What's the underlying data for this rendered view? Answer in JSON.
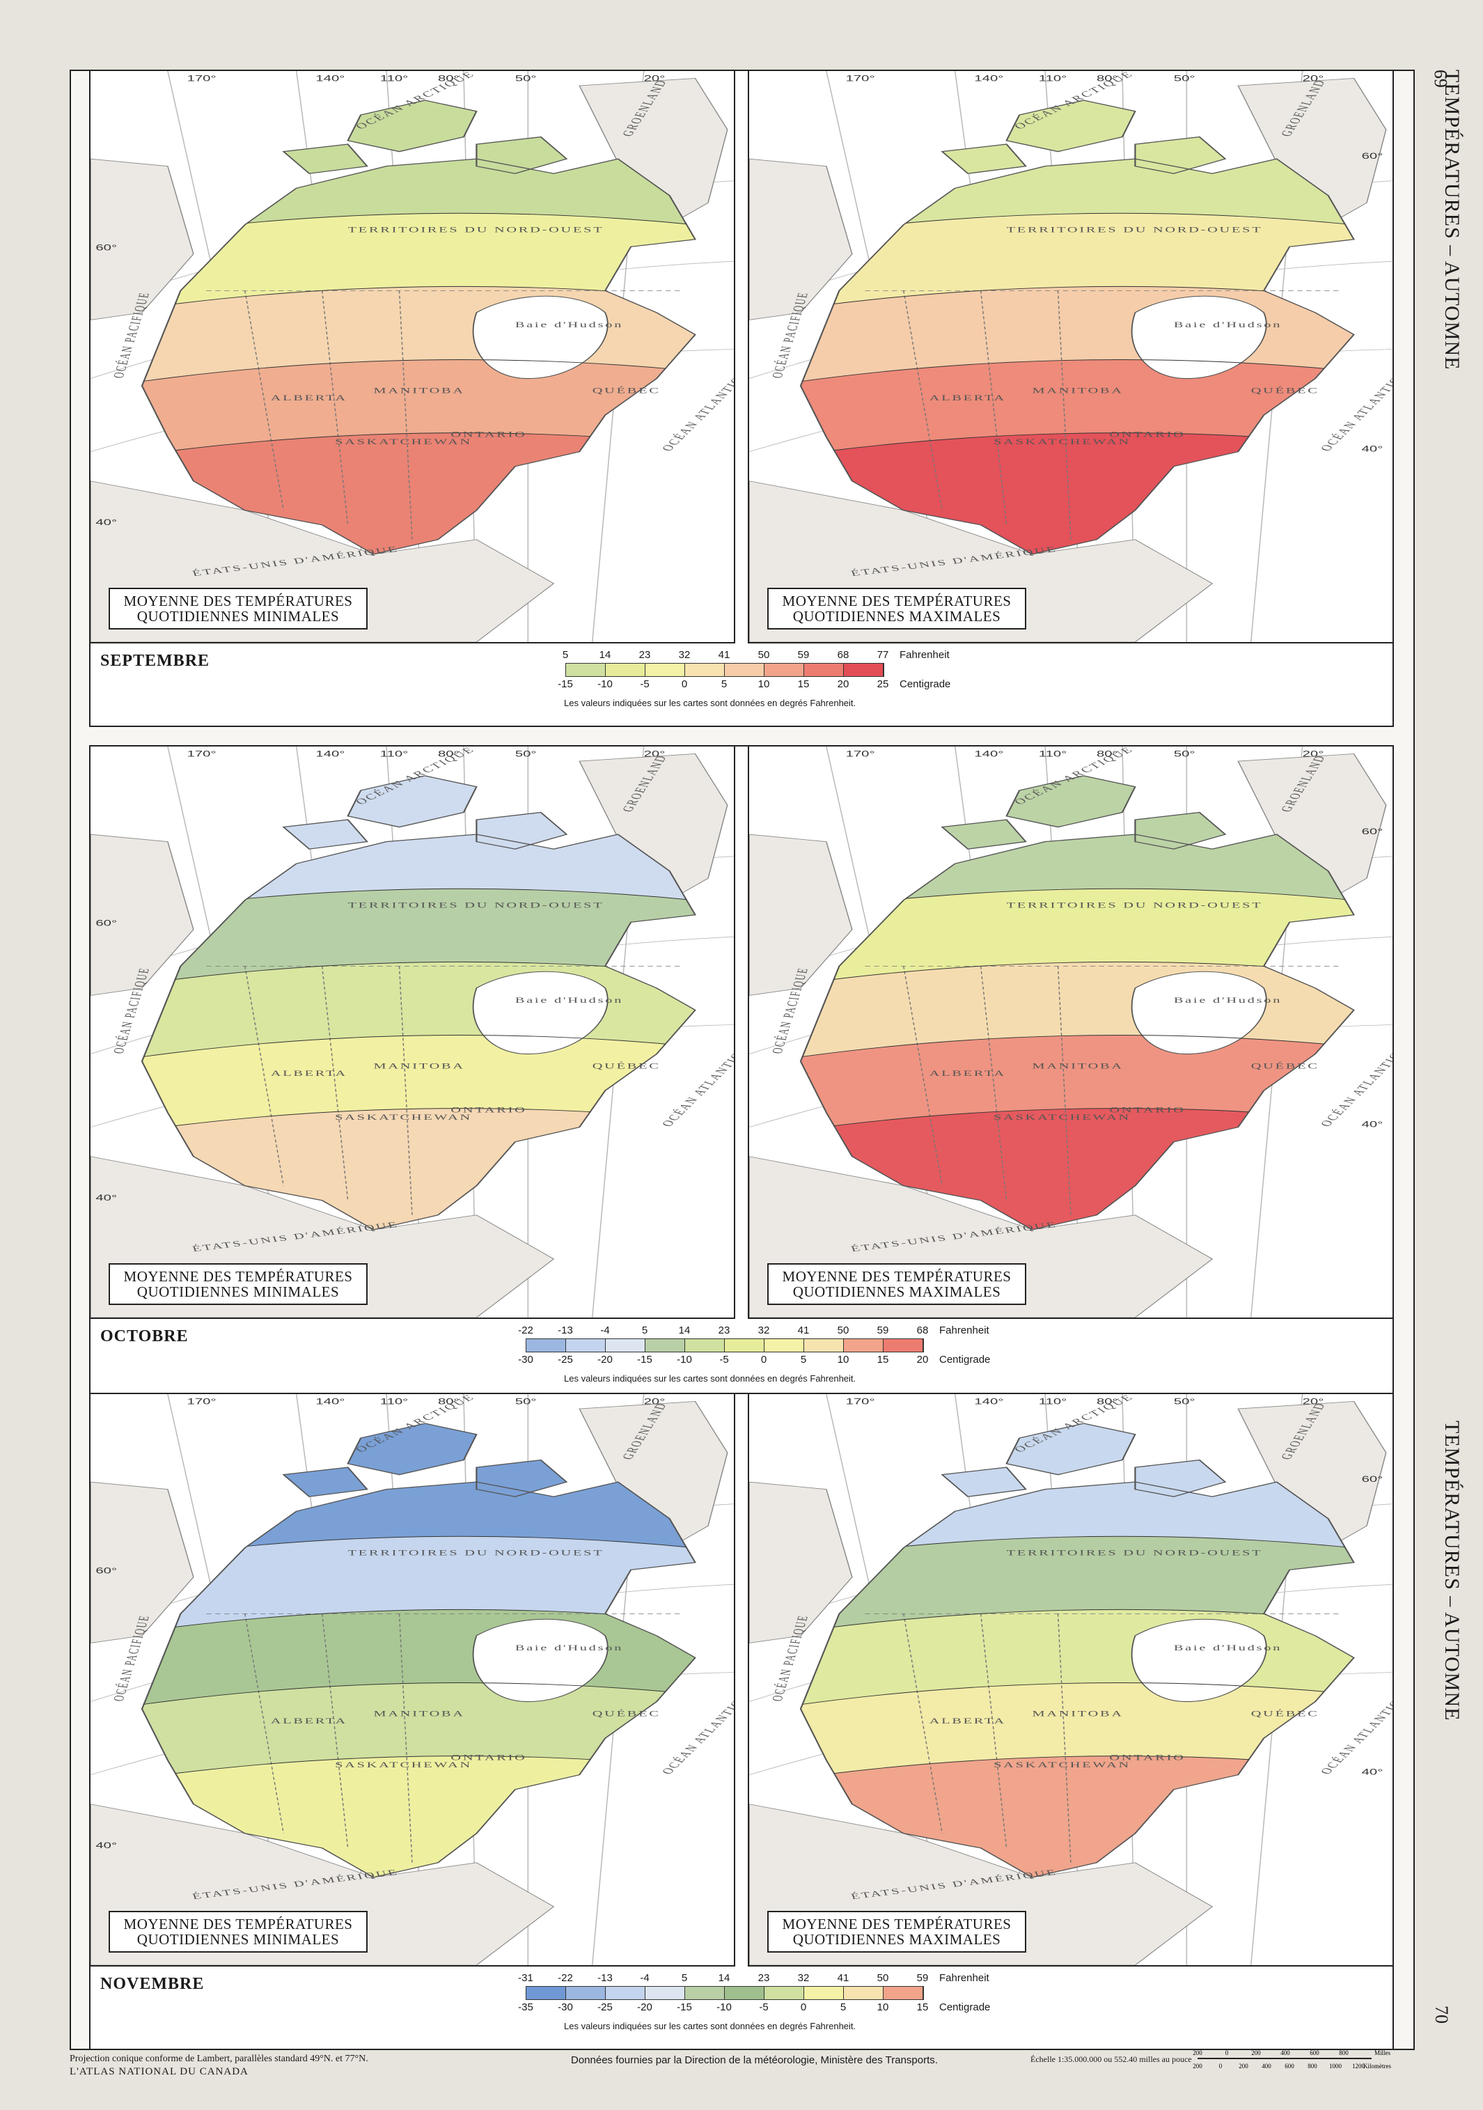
{
  "side_title": "TEMPÉRATURES – AUTOMNE",
  "page_numbers": {
    "top": "69",
    "bottom": "70"
  },
  "map_labels": {
    "min": "MOYENNE DES TEMPÉRATURES QUOTIDIENNES MINIMALES",
    "max": "MOYENNE DES TEMPÉRATURES QUOTIDIENNES MAXIMALES"
  },
  "legend_units": {
    "fahrenheit": "Fahrenheit",
    "celsius": "Centigrade"
  },
  "legend_note": "Les valeurs indiquées sur les cartes sont données en degrés Fahrenheit.",
  "months": [
    {
      "name": "SEPTEMBRE",
      "fahrenheit": [
        "5",
        "14",
        "23",
        "32",
        "41",
        "50",
        "59",
        "68",
        "77"
      ],
      "celsius": [
        "-15",
        "-10",
        "-5",
        "0",
        "5",
        "10",
        "15",
        "20",
        "25"
      ],
      "colors": [
        "#cfe0a0",
        "#e6ec9a",
        "#f4f2a6",
        "#f7e3b0",
        "#f6cda8",
        "#f2a48a",
        "#ec7c70",
        "#e34e56"
      ],
      "min_zones": [
        "#c8dc9c",
        "#eef0a0",
        "#f5d6b0",
        "#f0ad90",
        "#ea8374"
      ],
      "max_zones": [
        "#d8e6a0",
        "#f4eaa8",
        "#f5cdaa",
        "#ee8b7a",
        "#e4525a"
      ]
    },
    {
      "name": "OCTOBRE",
      "fahrenheit": [
        "-22",
        "-13",
        "-4",
        "5",
        "14",
        "23",
        "32",
        "41",
        "50",
        "59",
        "68"
      ],
      "celsius": [
        "-30",
        "-25",
        "-20",
        "-15",
        "-10",
        "-5",
        "0",
        "5",
        "10",
        "15",
        "20"
      ],
      "colors": [
        "#9bb7e0",
        "#c3d4ee",
        "#dde6f0",
        "#b9cfa6",
        "#cfe0a0",
        "#e6ec9a",
        "#f4f2a6",
        "#f7e3b0",
        "#f2a48a",
        "#ec7c70"
      ],
      "min_zones": [
        "#cfdcef",
        "#b7cfa6",
        "#d8e6a0",
        "#f2f0a2",
        "#f5d8b4"
      ],
      "max_zones": [
        "#bcd3a6",
        "#e9ee9c",
        "#f5dcb0",
        "#ef9482",
        "#e55a5e"
      ]
    },
    {
      "name": "NOVEMBRE",
      "fahrenheit": [
        "-31",
        "-22",
        "-13",
        "-4",
        "5",
        "14",
        "23",
        "32",
        "41",
        "50",
        "59"
      ],
      "celsius": [
        "-35",
        "-30",
        "-25",
        "-20",
        "-15",
        "-10",
        "-5",
        "0",
        "5",
        "10",
        "15"
      ],
      "colors": [
        "#6f98d4",
        "#9bb7e0",
        "#c3d4ee",
        "#dde6f0",
        "#b9cfa6",
        "#9fc08e",
        "#cfe0a0",
        "#f4f2a6",
        "#f7e3b0",
        "#f2a48a"
      ],
      "min_zones": [
        "#7aa0d6",
        "#c5d6ee",
        "#a9c794",
        "#cfe0a0",
        "#eef0a0"
      ],
      "max_zones": [
        "#c8d8ee",
        "#b4cda2",
        "#dfe9a0",
        "#f3eba8",
        "#f0a58c"
      ]
    }
  ],
  "map_text": {
    "longitudes": [
      "170°",
      "140°",
      "110°",
      "80°",
      "50°",
      "20°"
    ],
    "latitudes": [
      "60°",
      "40°"
    ],
    "places": [
      "OCÉAN ARCTIQUE",
      "GROENLAND",
      "Baie d'Hudson",
      "OCÉAN ATLANTIQUE",
      "OCÉAN PACIFIQUE",
      "ÉTATS-UNIS D'AMÉRIQUE",
      "MANITOBA",
      "ALBERTA",
      "SASKATCHEWAN",
      "ONTARIO",
      "QUÉBEC",
      "TERRITOIRES DU NORD-OUEST"
    ]
  },
  "footer": {
    "projection": "Projection conique conforme de Lambert, parallèles standard 49°N. et 77°N.",
    "atlas": "L'ATLAS NATIONAL DU CANADA",
    "source": "Données fournies par la Direction de la météorologie, Ministère des Transports.",
    "scale": "Échelle 1:35.000.000 ou 552.40 milles au pouce",
    "miles": "Milles",
    "km": "Kilomètres",
    "mile_ticks": [
      "200",
      "0",
      "200",
      "400",
      "600",
      "800"
    ],
    "km_ticks": [
      "200",
      "0",
      "200",
      "400",
      "600",
      "800",
      "1000",
      "1200"
    ]
  }
}
